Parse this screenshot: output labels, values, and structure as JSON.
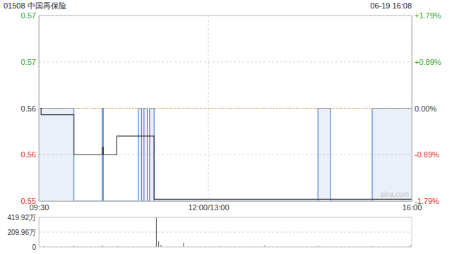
{
  "chart_data": [
    {
      "type": "line",
      "title": "01508 中国再保险",
      "subtitle": "06-19 16:08",
      "annotation": "sina.com",
      "prev_close": 0.56,
      "x": [
        0,
        2,
        31,
        56,
        57,
        69,
        88,
        91,
        93,
        96,
        98,
        102,
        247,
        258,
        295,
        330
      ],
      "series": [
        {
          "type": "area",
          "color": "#4f81d6",
          "values": [
            0.56,
            0.56,
            0.55,
            0.56,
            0.55,
            0.55,
            0.56,
            0.55,
            0.56,
            0.55,
            0.56,
            0.55,
            0.56,
            0.55,
            0.56,
            0.56
          ]
        },
        {
          "type": "line",
          "color": "#333333",
          "values": [
            0.56,
            0.5593,
            0.555,
            0.5558,
            0.555,
            0.557,
            0.557,
            0.557,
            0.557,
            0.557,
            0.557,
            0.5502,
            0.5502,
            0.5502,
            0.5502,
            0.5502
          ]
        }
      ],
      "xlim": [
        0,
        330
      ],
      "xticks": [
        {
          "value": 0,
          "label": "09:30"
        },
        {
          "value": 150,
          "label": "12:00/13:00"
        },
        {
          "value": 330,
          "label": "16:00"
        }
      ],
      "ylim": [
        0.55,
        0.57
      ],
      "yticks": [
        {
          "value": 0.57,
          "label": "0.57"
        },
        {
          "value": 0.565,
          "label": "0.57"
        },
        {
          "value": 0.56,
          "label": "0.56"
        },
        {
          "value": 0.555,
          "label": "0.56"
        },
        {
          "value": 0.55,
          "label": "0.55"
        }
      ],
      "y2lim": [
        -1.79,
        1.79
      ],
      "y2ticks": [
        {
          "value": 1.79,
          "label": "+1.79%"
        },
        {
          "value": 0.89,
          "label": "+0.89%"
        },
        {
          "value": 0,
          "label": "0.00%"
        },
        {
          "value": -0.89,
          "label": "-0.89%"
        },
        {
          "value": -1.79,
          "label": "-1.79%"
        }
      ],
      "grid": true
    },
    {
      "type": "bar",
      "color": "#555555",
      "x": [
        0,
        5,
        31,
        56,
        70,
        104,
        106,
        108,
        128,
        160,
        200,
        247,
        295,
        329
      ],
      "values": [
        30,
        10,
        15,
        20,
        10,
        419.92,
        80,
        30,
        60,
        10,
        20,
        15,
        10,
        20
      ],
      "xlim": [
        0,
        330
      ],
      "ylim": [
        0,
        419.92
      ],
      "yticks": [
        {
          "value": 419.92,
          "label": "419.92万"
        },
        {
          "value": 209.96,
          "label": "209.96万"
        },
        0
      ],
      "tick_labels": "y"
    }
  ]
}
